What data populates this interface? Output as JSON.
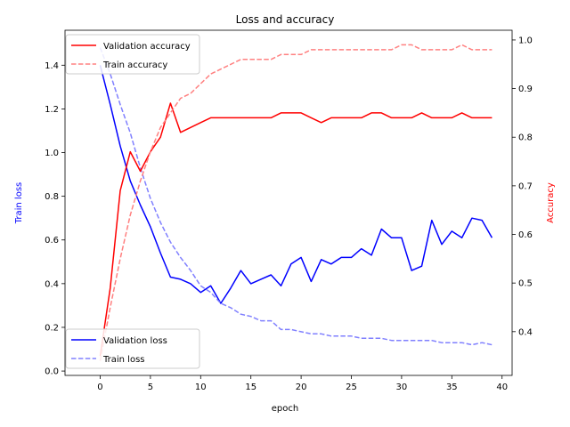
{
  "chart_data": {
    "type": "line",
    "title": "Loss and accuracy",
    "xlabel": "epoch",
    "ylabel_left": "Train loss",
    "ylabel_right": "Accuracy",
    "xlim": [
      -3.5,
      41.0
    ],
    "ylim_left": [
      -0.02,
      1.56
    ],
    "ylim_right": [
      0.31,
      1.02
    ],
    "x_ticks": [
      0,
      5,
      10,
      15,
      20,
      25,
      30,
      35,
      40
    ],
    "y_left_ticks": [
      0.0,
      0.2,
      0.4,
      0.6,
      0.8,
      1.0,
      1.2,
      1.4
    ],
    "y_right_ticks": [
      0.4,
      0.5,
      0.6,
      0.7,
      0.8,
      0.9,
      1.0
    ],
    "x": [
      0,
      1,
      2,
      3,
      4,
      5,
      6,
      7,
      8,
      9,
      10,
      11,
      12,
      13,
      14,
      15,
      16,
      17,
      18,
      19,
      20,
      21,
      22,
      23,
      24,
      25,
      26,
      27,
      28,
      29,
      30,
      31,
      32,
      33,
      34,
      35,
      36,
      37,
      38,
      39
    ],
    "series_left": [
      {
        "name": "Validation loss",
        "color": "#0000ff",
        "dashed": false,
        "values": [
          1.4,
          1.22,
          1.03,
          0.87,
          0.76,
          0.66,
          0.54,
          0.43,
          0.42,
          0.4,
          0.36,
          0.39,
          0.31,
          0.38,
          0.46,
          0.4,
          0.42,
          0.44,
          0.39,
          0.49,
          0.52,
          0.41,
          0.51,
          0.49,
          0.52,
          0.52,
          0.56,
          0.53,
          0.65,
          0.61,
          0.61,
          0.46,
          0.48,
          0.69,
          0.58,
          0.64,
          0.61,
          0.7,
          0.69,
          0.61
        ]
      },
      {
        "name": "Train loss",
        "color": "#8080ff",
        "dashed": true,
        "values": [
          1.48,
          1.36,
          1.22,
          1.09,
          0.93,
          0.79,
          0.68,
          0.59,
          0.52,
          0.46,
          0.39,
          0.36,
          0.31,
          0.29,
          0.26,
          0.25,
          0.23,
          0.23,
          0.19,
          0.19,
          0.18,
          0.17,
          0.17,
          0.16,
          0.16,
          0.16,
          0.15,
          0.15,
          0.15,
          0.14,
          0.14,
          0.14,
          0.14,
          0.14,
          0.13,
          0.13,
          0.13,
          0.12,
          0.13,
          0.12
        ]
      }
    ],
    "series_right": [
      {
        "name": "Validation accuracy",
        "color": "#ff0000",
        "dashed": false,
        "values": [
          0.35,
          0.49,
          0.69,
          0.77,
          0.73,
          0.77,
          0.8,
          0.87,
          0.81,
          0.82,
          0.83,
          0.84,
          0.84,
          0.84,
          0.84,
          0.84,
          0.84,
          0.84,
          0.85,
          0.85,
          0.85,
          0.84,
          0.83,
          0.84,
          0.84,
          0.84,
          0.84,
          0.85,
          0.85,
          0.84,
          0.84,
          0.84,
          0.85,
          0.84,
          0.84,
          0.84,
          0.85,
          0.84,
          0.84,
          0.84
        ]
      },
      {
        "name": "Train accuracy",
        "color": "#ff8080",
        "dashed": true,
        "values": [
          0.34,
          0.45,
          0.55,
          0.64,
          0.71,
          0.77,
          0.82,
          0.85,
          0.88,
          0.89,
          0.91,
          0.93,
          0.94,
          0.95,
          0.96,
          0.96,
          0.96,
          0.96,
          0.97,
          0.97,
          0.97,
          0.98,
          0.98,
          0.98,
          0.98,
          0.98,
          0.98,
          0.98,
          0.98,
          0.98,
          0.99,
          0.99,
          0.98,
          0.98,
          0.98,
          0.98,
          0.99,
          0.98,
          0.98,
          0.98
        ]
      }
    ],
    "legend_top_position": "top-left",
    "legend_bottom_position": "bottom-left",
    "grid": false
  }
}
